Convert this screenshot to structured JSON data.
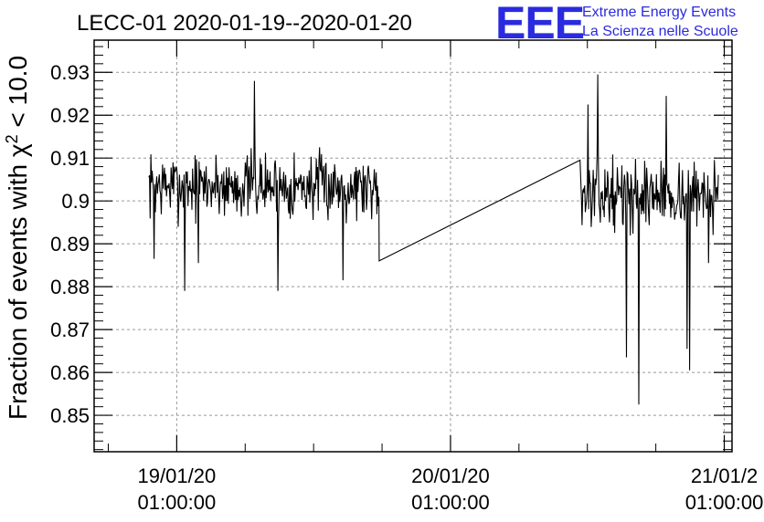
{
  "header": {
    "title": "LECC-01 2020-01-19--2020-01-20",
    "logo_text": "EEE",
    "logo_line1": "Extreme Energy Events",
    "logo_line2": "La Scienza nelle Scuole"
  },
  "chart_data": {
    "type": "line",
    "title": "LECC-01 2020-01-19--2020-01-20",
    "xlabel": "",
    "ylabel_prefix": "Fraction of events with ",
    "ylabel_chi": "χ",
    "ylabel_sup": "2",
    "ylabel_suffix": " < 10.0",
    "x_unit": "days since 2020-01-18 00:00",
    "xlim": [
      0.74,
      3.07
    ],
    "ylim": [
      0.8415,
      0.9375
    ],
    "grid": true,
    "line_color": "#000000",
    "y_ticks": [
      {
        "value": 0.85,
        "label": "0.85"
      },
      {
        "value": 0.86,
        "label": "0.86"
      },
      {
        "value": 0.87,
        "label": "0.87"
      },
      {
        "value": 0.88,
        "label": "0.88"
      },
      {
        "value": 0.89,
        "label": "0.89"
      },
      {
        "value": 0.9,
        "label": "0.9"
      },
      {
        "value": 0.91,
        "label": "0.91"
      },
      {
        "value": 0.92,
        "label": "0.92"
      },
      {
        "value": 0.93,
        "label": "0.93"
      }
    ],
    "x_ticks": [
      {
        "date": "19/01/20",
        "time": "01:00:00",
        "value": 1.0417
      },
      {
        "date": "20/01/20",
        "time": "01:00:00",
        "value": 2.0417
      },
      {
        "date": "21/01/2",
        "time": "01:00:00",
        "value": 3.0417
      }
    ],
    "series": [
      {
        "segments": [
          {
            "x_start": 0.94,
            "x_end": 1.78,
            "y_mean": 0.9035,
            "y_amp": 0.007,
            "seed": 7
          },
          {
            "x_start": 2.52,
            "x_end": 3.02,
            "y_mean": 0.9015,
            "y_amp": 0.007,
            "seed": 13
          }
        ],
        "bridge": [
          [
            1.781,
            0.886
          ],
          [
            2.515,
            0.9095
          ]
        ],
        "spikes": [
          [
            0.96,
            0.8865
          ],
          [
            1.07,
            0.879
          ],
          [
            1.12,
            0.8855
          ],
          [
            1.325,
            0.928
          ],
          [
            1.41,
            0.879
          ],
          [
            1.65,
            0.8815
          ],
          [
            2.545,
            0.9225
          ],
          [
            2.58,
            0.9295
          ],
          [
            2.685,
            0.8635
          ],
          [
            2.73,
            0.8525
          ],
          [
            2.83,
            0.9245
          ],
          [
            2.905,
            0.8655
          ],
          [
            2.915,
            0.8605
          ],
          [
            2.985,
            0.8855
          ]
        ]
      }
    ]
  }
}
